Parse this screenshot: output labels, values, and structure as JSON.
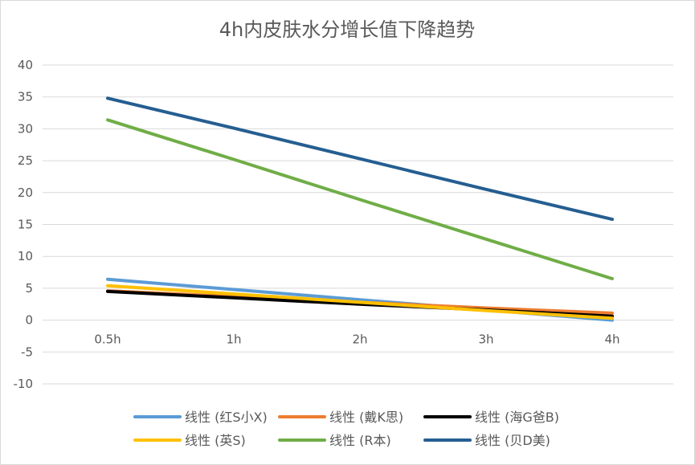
{
  "chart_data": {
    "type": "line",
    "title": "4h内皮肤水分增长值下降趋势",
    "xlabel": "",
    "ylabel": "",
    "categories": [
      "0.5h",
      "1h",
      "2h",
      "3h",
      "4h"
    ],
    "x": [
      0.5,
      1,
      2,
      3,
      4
    ],
    "ylim": [
      -10,
      40
    ],
    "yticks": [
      -10,
      -5,
      0,
      5,
      10,
      15,
      20,
      25,
      30,
      35,
      40
    ],
    "ytick_labels": [
      "-10",
      "-5",
      "0",
      "5",
      "10",
      "15",
      "20",
      "25",
      "30",
      "35",
      "40"
    ],
    "grid": true,
    "legend_position": "bottom",
    "series": [
      {
        "name": "线性 (红S小X)",
        "color": "#5b9bd5",
        "values": [
          6.4,
          4.8,
          3.2,
          1.6,
          0.0
        ]
      },
      {
        "name": "线性 (戴K思)",
        "color": "#ed7d31",
        "values": [
          4.6,
          3.7,
          2.8,
          1.9,
          1.1
        ]
      },
      {
        "name": "线性 (海G爸B)",
        "color": "#000000",
        "values": [
          4.5,
          3.5,
          2.5,
          1.6,
          0.6
        ]
      },
      {
        "name": "线性 (英S)",
        "color": "#ffc000",
        "values": [
          5.4,
          4.1,
          2.8,
          1.5,
          0.3
        ]
      },
      {
        "name": "线性 (R本)",
        "color": "#70ad47",
        "values": [
          31.4,
          25.2,
          18.9,
          12.7,
          6.5
        ]
      },
      {
        "name": "线性 (贝D美)",
        "color": "#255e91",
        "values": [
          34.8,
          30.1,
          25.3,
          20.5,
          15.8
        ]
      }
    ]
  }
}
